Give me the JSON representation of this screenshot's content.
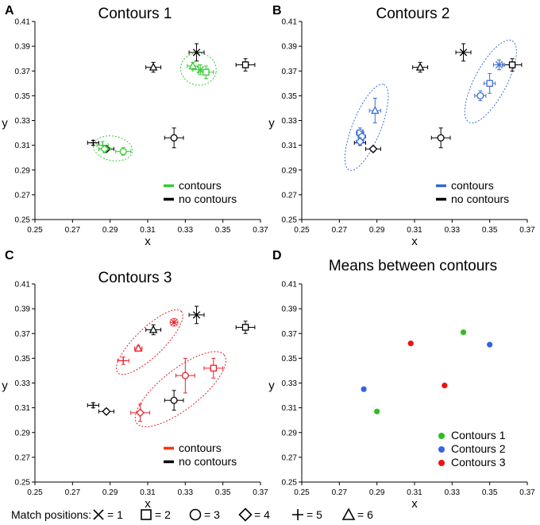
{
  "chart_data": [
    {
      "panel": "A",
      "type": "scatter",
      "title": "Contours 1",
      "xlabel": "x",
      "ylabel": "y",
      "xlim": [
        0.25,
        0.37
      ],
      "ylim": [
        0.25,
        0.41
      ],
      "xticks": [
        "0.25",
        "0.27",
        "0.29",
        "0.31",
        "0.33",
        "0.35",
        "0.37"
      ],
      "yticks": [
        "0.25",
        "0.27",
        "0.29",
        "0.31",
        "0.33",
        "0.35",
        "0.37",
        "0.39",
        "0.41"
      ],
      "legend": {
        "position": "bottom-right",
        "entries": [
          {
            "label": "contours",
            "color": "#33cc33"
          },
          {
            "label": "no contours",
            "color": "#000000"
          }
        ]
      },
      "series": [
        {
          "name": "contours",
          "color": "#33cc33",
          "points": [
            {
              "x": 0.286,
              "y": 0.31,
              "m": "plus",
              "ex": 0.003,
              "ey": 0.003
            },
            {
              "x": 0.287,
              "y": 0.307,
              "m": "diamond",
              "ex": 0.003,
              "ey": 0.003
            },
            {
              "x": 0.297,
              "y": 0.305,
              "m": "circle",
              "ex": 0.004,
              "ey": 0.003
            },
            {
              "x": 0.334,
              "y": 0.374,
              "m": "triangle",
              "ex": 0.003,
              "ey": 0.003
            },
            {
              "x": 0.338,
              "y": 0.371,
              "m": "x",
              "ex": 0.004,
              "ey": 0.004
            },
            {
              "x": 0.341,
              "y": 0.369,
              "m": "square",
              "ex": 0.004,
              "ey": 0.005
            }
          ]
        },
        {
          "name": "no contours",
          "color": "#000000",
          "points": [
            {
              "x": 0.281,
              "y": 0.312,
              "m": "plus",
              "ex": 0.003,
              "ey": 0.002
            },
            {
              "x": 0.288,
              "y": 0.307,
              "m": "diamond",
              "ex": 0.004,
              "ey": 0.002
            },
            {
              "x": 0.324,
              "y": 0.316,
              "m": "circle",
              "ex": 0.005,
              "ey": 0.008
            },
            {
              "x": 0.313,
              "y": 0.373,
              "m": "triangle",
              "ex": 0.004,
              "ey": 0.004
            },
            {
              "x": 0.336,
              "y": 0.385,
              "m": "x",
              "ex": 0.004,
              "ey": 0.007
            },
            {
              "x": 0.362,
              "y": 0.375,
              "m": "square",
              "ex": 0.005,
              "ey": 0.005
            }
          ]
        }
      ],
      "ellipses": [
        {
          "color": "#33cc33",
          "cx": 0.2915,
          "cy": 0.3075,
          "rx": 0.0105,
          "ry": 0.0065,
          "angle": 10
        },
        {
          "color": "#33cc33",
          "cx": 0.337,
          "cy": 0.3715,
          "rx": 0.0095,
          "ry": 0.0085,
          "angle": 10
        }
      ]
    },
    {
      "panel": "B",
      "type": "scatter",
      "title": "Contours 2",
      "xlabel": "x",
      "ylabel": "y",
      "xlim": [
        0.25,
        0.37
      ],
      "ylim": [
        0.25,
        0.41
      ],
      "xticks": [
        "0.25",
        "0.27",
        "0.29",
        "0.31",
        "0.33",
        "0.35",
        "0.37"
      ],
      "yticks": [
        "0.25",
        "0.27",
        "0.29",
        "0.31",
        "0.33",
        "0.35",
        "0.37",
        "0.39",
        "0.41"
      ],
      "legend": {
        "position": "bottom-right",
        "entries": [
          {
            "label": "contours",
            "color": "#3366cc"
          },
          {
            "label": "no contours",
            "color": "#000000"
          }
        ]
      },
      "series": [
        {
          "name": "contours",
          "color": "#3b6fd6",
          "points": [
            {
              "x": 0.281,
              "y": 0.32,
              "m": "square",
              "ex": 0.002,
              "ey": 0.004
            },
            {
              "x": 0.282,
              "y": 0.317,
              "m": "circle",
              "ex": 0.002,
              "ey": 0.004
            },
            {
              "x": 0.281,
              "y": 0.313,
              "m": "diamond",
              "ex": 0.002,
              "ey": 0.003
            },
            {
              "x": 0.289,
              "y": 0.338,
              "m": "triangle",
              "ex": 0.003,
              "ey": 0.01
            },
            {
              "x": 0.345,
              "y": 0.35,
              "m": "circle",
              "ex": 0.003,
              "ey": 0.004
            },
            {
              "x": 0.35,
              "y": 0.36,
              "m": "square",
              "ex": 0.003,
              "ey": 0.008
            },
            {
              "x": 0.355,
              "y": 0.375,
              "m": "x",
              "ex": 0.003,
              "ey": 0.004
            }
          ]
        },
        {
          "name": "no contours",
          "color": "#000000",
          "points": [
            {
              "x": 0.281,
              "y": 0.312,
              "m": "plus",
              "ex": 0.003,
              "ey": 0.002
            },
            {
              "x": 0.288,
              "y": 0.307,
              "m": "diamond",
              "ex": 0.004,
              "ey": 0.002
            },
            {
              "x": 0.324,
              "y": 0.316,
              "m": "circle",
              "ex": 0.005,
              "ey": 0.008
            },
            {
              "x": 0.313,
              "y": 0.373,
              "m": "triangle",
              "ex": 0.004,
              "ey": 0.004
            },
            {
              "x": 0.336,
              "y": 0.385,
              "m": "x",
              "ex": 0.004,
              "ey": 0.007
            },
            {
              "x": 0.362,
              "y": 0.375,
              "m": "square",
              "ex": 0.005,
              "ey": 0.005
            }
          ]
        }
      ],
      "ellipses": [
        {
          "color": "#3b6fd6",
          "cx": 0.2845,
          "cy": 0.3245,
          "rx": 0.0245,
          "ry": 0.0075,
          "angle": -68
        },
        {
          "color": "#3b6fd6",
          "cx": 0.3505,
          "cy": 0.3615,
          "rx": 0.0245,
          "ry": 0.0085,
          "angle": -62
        }
      ]
    },
    {
      "panel": "C",
      "type": "scatter",
      "title": "Contours 3",
      "xlabel": "x",
      "ylabel": "y",
      "xlim": [
        0.25,
        0.37
      ],
      "ylim": [
        0.25,
        0.41
      ],
      "xticks": [
        "0.25",
        "0.27",
        "0.29",
        "0.31",
        "0.33",
        "0.35",
        "0.37"
      ],
      "yticks": [
        "0.25",
        "0.27",
        "0.29",
        "0.31",
        "0.33",
        "0.35",
        "0.37",
        "0.39",
        "0.41"
      ],
      "legend": {
        "position": "bottom-right",
        "entries": [
          {
            "label": "contours",
            "color": "#ff3300"
          },
          {
            "label": "no contours",
            "color": "#000000"
          }
        ]
      },
      "series": [
        {
          "name": "contours",
          "color": "#e8202a",
          "points": [
            {
              "x": 0.297,
              "y": 0.348,
              "m": "plus",
              "ex": 0.003,
              "ey": 0.003
            },
            {
              "x": 0.305,
              "y": 0.358,
              "m": "triangle",
              "ex": 0.002,
              "ey": 0.002
            },
            {
              "x": 0.324,
              "y": 0.379,
              "m": "x",
              "ex": 0.002,
              "ey": 0.003
            },
            {
              "x": 0.306,
              "y": 0.306,
              "m": "diamond",
              "ex": 0.005,
              "ey": 0.007
            },
            {
              "x": 0.33,
              "y": 0.336,
              "m": "circle",
              "ex": 0.005,
              "ey": 0.014
            },
            {
              "x": 0.345,
              "y": 0.342,
              "m": "square",
              "ex": 0.005,
              "ey": 0.008
            }
          ]
        },
        {
          "name": "no contours",
          "color": "#000000",
          "points": [
            {
              "x": 0.281,
              "y": 0.312,
              "m": "plus",
              "ex": 0.003,
              "ey": 0.002
            },
            {
              "x": 0.288,
              "y": 0.307,
              "m": "diamond",
              "ex": 0.004,
              "ey": 0.002
            },
            {
              "x": 0.324,
              "y": 0.316,
              "m": "circle",
              "ex": 0.005,
              "ey": 0.008
            },
            {
              "x": 0.313,
              "y": 0.373,
              "m": "triangle",
              "ex": 0.004,
              "ey": 0.004
            },
            {
              "x": 0.336,
              "y": 0.385,
              "m": "x",
              "ex": 0.004,
              "ey": 0.007
            },
            {
              "x": 0.362,
              "y": 0.375,
              "m": "square",
              "ex": 0.005,
              "ey": 0.005
            }
          ]
        }
      ],
      "ellipses": [
        {
          "color": "#e8202a",
          "cx": 0.311,
          "cy": 0.363,
          "rx": 0.0235,
          "ry": 0.0075,
          "angle": -44
        },
        {
          "color": "#e8202a",
          "cx": 0.3275,
          "cy": 0.325,
          "rx": 0.0295,
          "ry": 0.0105,
          "angle": -38
        }
      ]
    },
    {
      "panel": "D",
      "type": "scatter",
      "title": "Means between contours",
      "xlabel": "x",
      "ylabel": "y",
      "xlim": [
        0.25,
        0.37
      ],
      "ylim": [
        0.25,
        0.41
      ],
      "xticks": [
        "0.25",
        "0.27",
        "0.29",
        "0.31",
        "0.33",
        "0.35",
        "0.37"
      ],
      "yticks": [
        "0.25",
        "0.27",
        "0.29",
        "0.31",
        "0.33",
        "0.35",
        "0.37",
        "0.39",
        "0.41"
      ],
      "legend": {
        "position": "bottom-right",
        "entries": [
          {
            "label": "Contours 1",
            "color": "#33bb22"
          },
          {
            "label": "Contours 2",
            "color": "#3366dd"
          },
          {
            "label": "Contours 3",
            "color": "#ee1111"
          }
        ]
      },
      "series": [
        {
          "name": "Contours 1",
          "color": "#33bb22",
          "points": [
            {
              "x": 0.29,
              "y": 0.307,
              "m": "dot"
            },
            {
              "x": 0.336,
              "y": 0.371,
              "m": "dot"
            }
          ]
        },
        {
          "name": "Contours 2",
          "color": "#3366dd",
          "points": [
            {
              "x": 0.283,
              "y": 0.325,
              "m": "dot"
            },
            {
              "x": 0.35,
              "y": 0.361,
              "m": "dot"
            }
          ]
        },
        {
          "name": "Contours 3",
          "color": "#ee1111",
          "points": [
            {
              "x": 0.308,
              "y": 0.362,
              "m": "dot"
            },
            {
              "x": 0.326,
              "y": 0.328,
              "m": "dot"
            }
          ]
        }
      ],
      "ellipses": []
    }
  ],
  "match_key": {
    "label": "Match positions:",
    "items": [
      {
        "symbol": "x",
        "text": "= 1"
      },
      {
        "symbol": "square",
        "text": "= 2"
      },
      {
        "symbol": "circle",
        "text": "= 3"
      },
      {
        "symbol": "diamond",
        "text": "= 4"
      },
      {
        "symbol": "plus",
        "text": "= 5"
      },
      {
        "symbol": "triangle",
        "text": "= 6"
      }
    ]
  }
}
